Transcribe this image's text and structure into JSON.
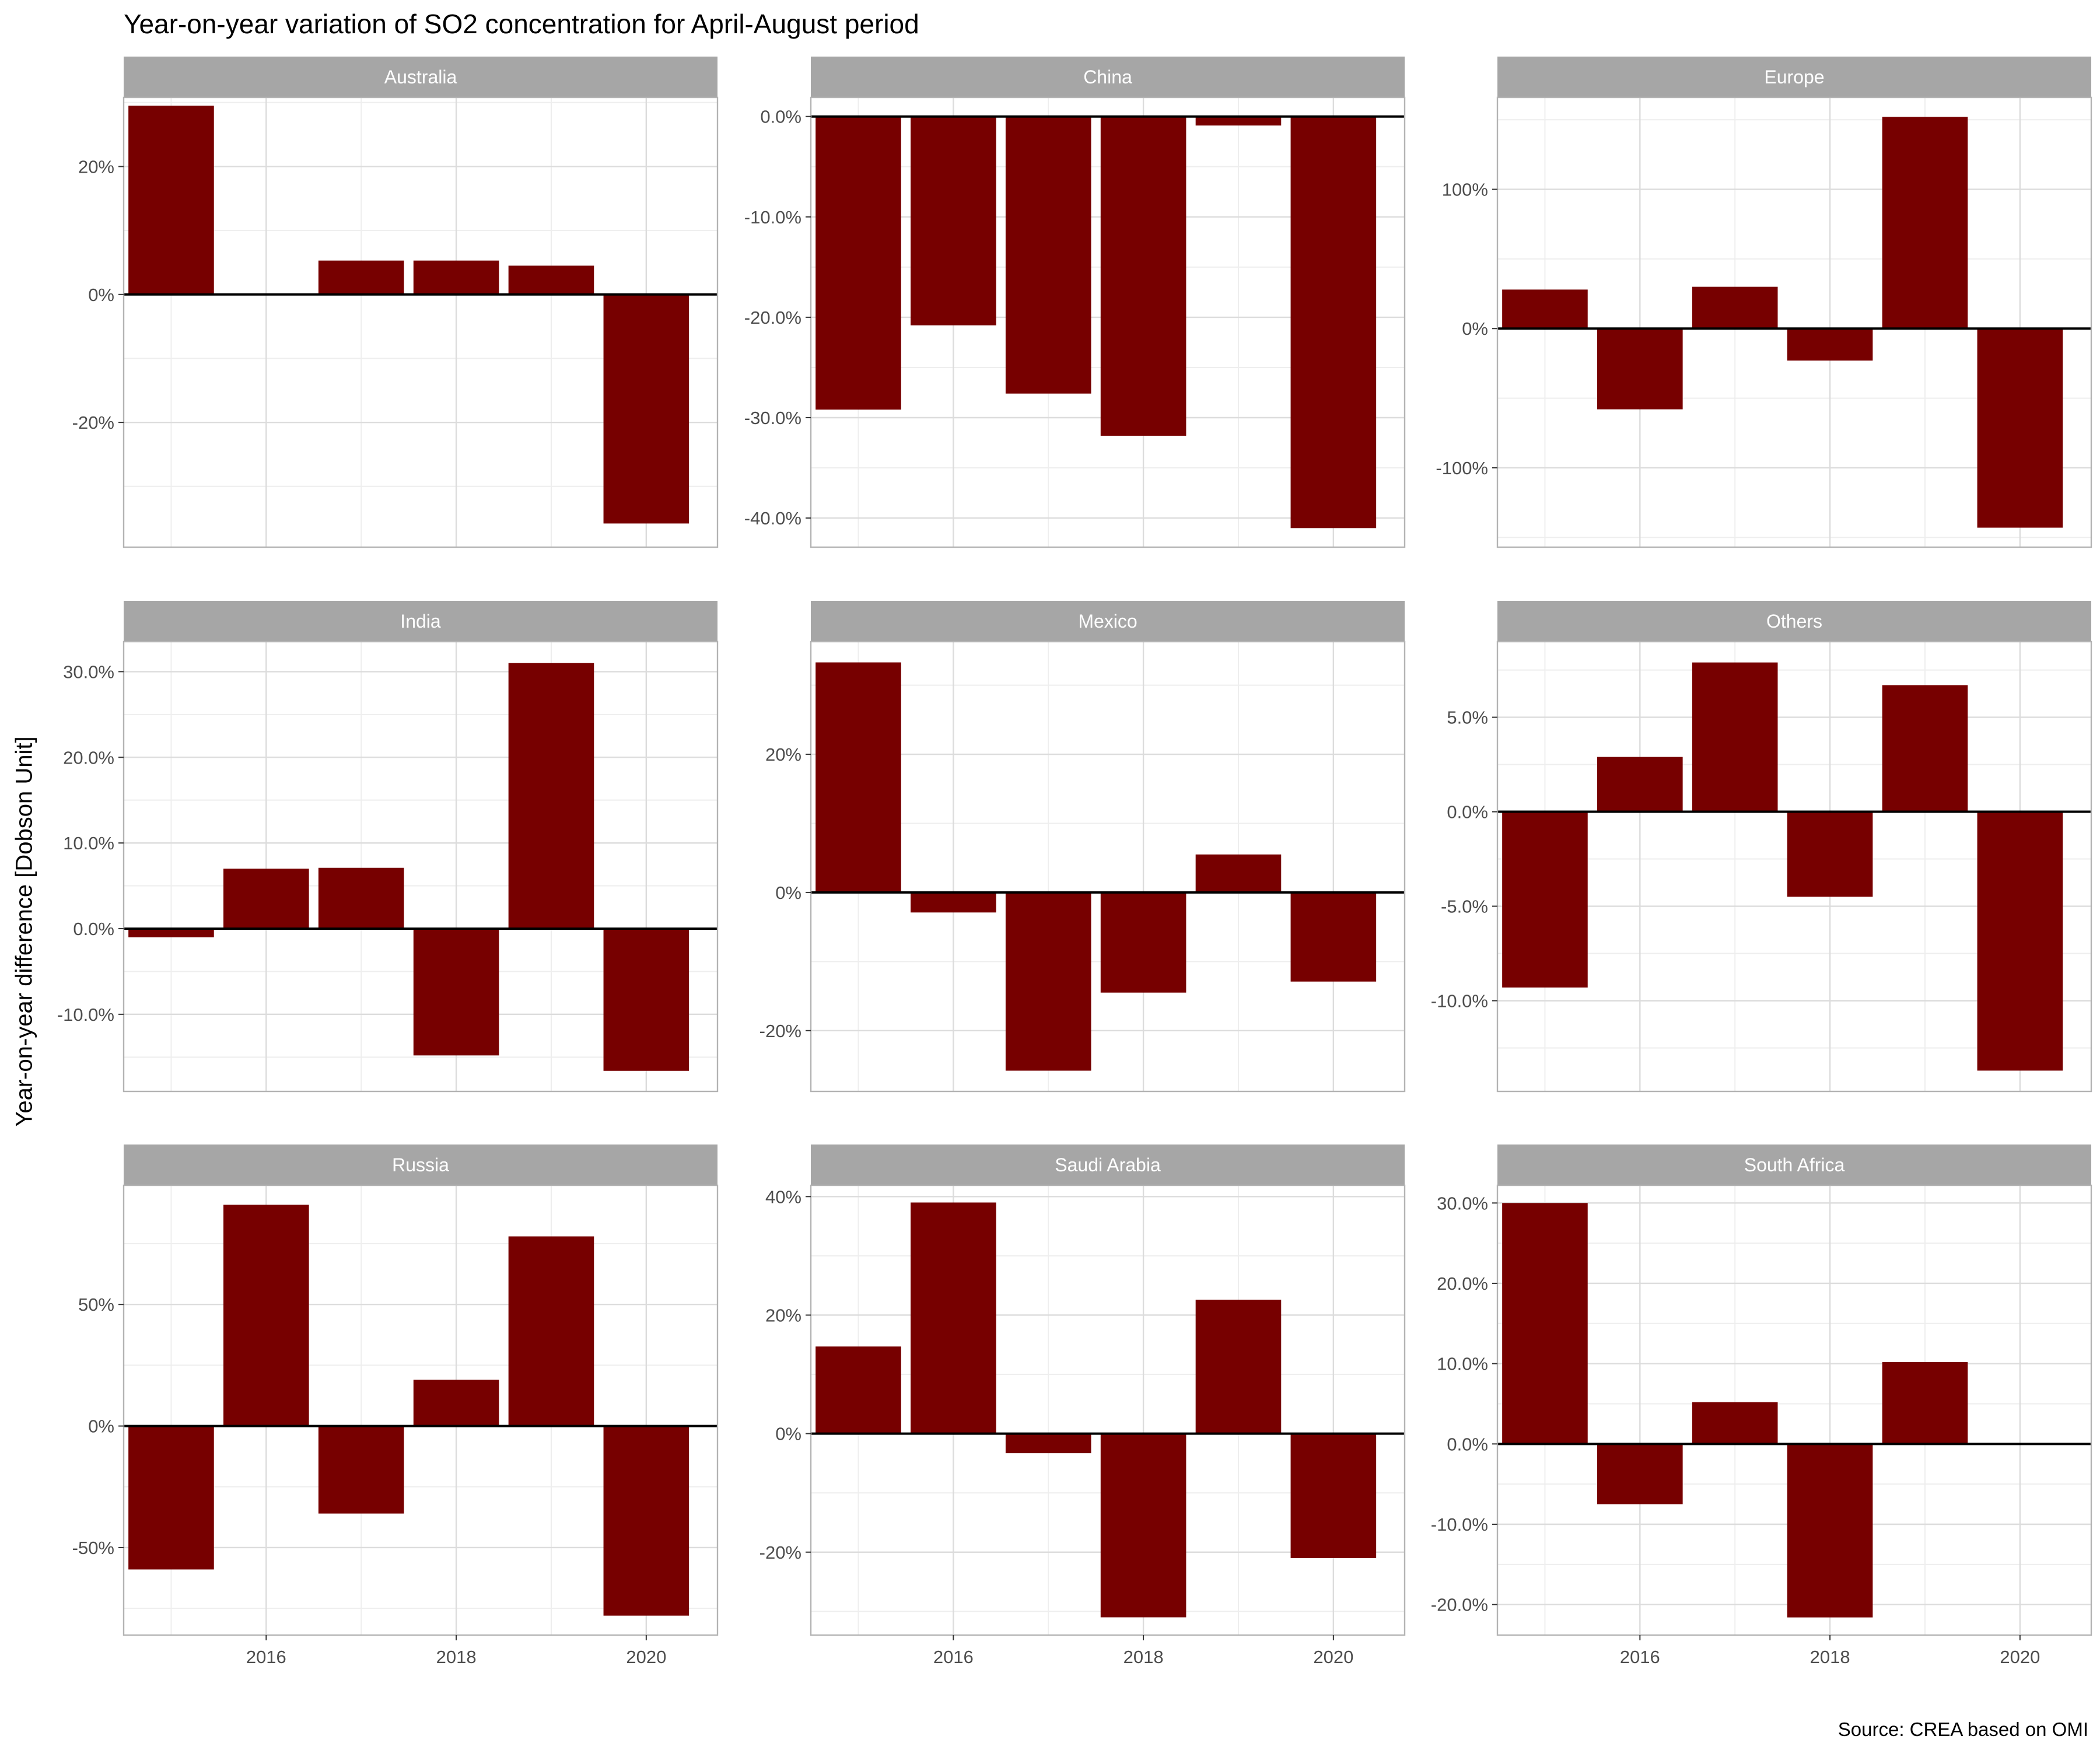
{
  "title": "Year-on-year variation of SO2 concentration for April-August period",
  "ylabel": "Year-on-year difference [Dobson Unit]",
  "caption": "Source: CREA based on OMI",
  "colors": {
    "bar": "#770000",
    "strip": "#a6a6a6",
    "grid_major": "#dcdcdc",
    "grid_minor": "#eeeeee",
    "panel_border": "#b3b3b3",
    "zero_line": "#000000"
  },
  "chart_data": {
    "type": "bar",
    "facets": 9,
    "layout": "3 columns x 3 rows",
    "x": [
      2015,
      2016,
      2017,
      2018,
      2019,
      2020
    ],
    "xlim": [
      2014.5,
      2020.75
    ],
    "x_ticks": [
      2016,
      2018,
      2020
    ],
    "x_tick_labels": [
      "2016",
      "2018",
      "2020"
    ],
    "panels": [
      {
        "name": "Australia",
        "values": [
          29.5,
          0.1,
          5.3,
          5.3,
          4.5,
          -35.8
        ],
        "ylim": [
          -39.5,
          30.8
        ],
        "major_ticks": [
          -20,
          0,
          20
        ],
        "minor_ticks": [
          -30,
          -10,
          10,
          30
        ],
        "tick_labels": [
          "-20%",
          "0%",
          "20%"
        ]
      },
      {
        "name": "China",
        "values": [
          -29.2,
          -20.8,
          -27.6,
          -31.8,
          -0.9,
          -41.0
        ],
        "ylim": [
          -42.9,
          1.9
        ],
        "major_ticks": [
          -40,
          -30,
          -20,
          -10,
          0
        ],
        "minor_ticks": [
          -35,
          -25,
          -15,
          -5
        ],
        "tick_labels": [
          "-40.0%",
          "-30.0%",
          "-20.0%",
          "-10.0%",
          "0.0%"
        ]
      },
      {
        "name": "Europe",
        "values": [
          28,
          -58,
          30,
          -23,
          152,
          -143
        ],
        "ylim": [
          -157,
          166
        ],
        "major_ticks": [
          -100,
          0,
          100
        ],
        "minor_ticks": [
          -150,
          -50,
          50,
          150
        ],
        "tick_labels": [
          "-100%",
          "0%",
          "100%"
        ]
      },
      {
        "name": "India",
        "values": [
          -1.0,
          7.0,
          7.1,
          -14.8,
          31.0,
          -16.6
        ],
        "ylim": [
          -19.0,
          33.5
        ],
        "major_ticks": [
          -10,
          0,
          10,
          20,
          30
        ],
        "minor_ticks": [
          -15,
          -5,
          5,
          15,
          25
        ],
        "tick_labels": [
          "-10.0%",
          "0.0%",
          "10.0%",
          "20.0%",
          "30.0%"
        ]
      },
      {
        "name": "Mexico",
        "values": [
          33.3,
          -2.9,
          -25.8,
          -14.5,
          5.5,
          -12.9
        ],
        "ylim": [
          -28.8,
          36.3
        ],
        "major_ticks": [
          -20,
          0,
          20
        ],
        "minor_ticks": [
          -30,
          -10,
          10,
          30
        ],
        "tick_labels": [
          "-20%",
          "0%",
          "20%"
        ]
      },
      {
        "name": "Others",
        "values": [
          -9.3,
          2.9,
          7.9,
          -4.5,
          6.7,
          -13.7
        ],
        "ylim": [
          -14.8,
          9.0
        ],
        "major_ticks": [
          -10,
          -5,
          0,
          5
        ],
        "minor_ticks": [
          -12.5,
          -7.5,
          -2.5,
          2.5,
          7.5
        ],
        "tick_labels": [
          "-10.0%",
          "-5.0%",
          "0.0%",
          "5.0%"
        ]
      },
      {
        "name": "Russia",
        "values": [
          -59,
          91,
          -36,
          19,
          78,
          -78
        ],
        "ylim": [
          -86,
          99
        ],
        "major_ticks": [
          -50,
          0,
          50
        ],
        "minor_ticks": [
          -75,
          -25,
          25,
          75
        ],
        "tick_labels": [
          "-50%",
          "0%",
          "50%"
        ]
      },
      {
        "name": "Saudi Arabia",
        "values": [
          14.7,
          39.0,
          -3.3,
          -31.0,
          22.6,
          -21.0
        ],
        "ylim": [
          -34.0,
          41.9
        ],
        "major_ticks": [
          -20,
          0,
          20,
          40
        ],
        "minor_ticks": [
          -30,
          -10,
          10,
          30
        ],
        "tick_labels": [
          "-20%",
          "0%",
          "20%",
          "40%"
        ]
      },
      {
        "name": "South Africa",
        "values": [
          30.0,
          -7.5,
          5.2,
          -21.6,
          10.2,
          0.0
        ],
        "ylim": [
          -23.8,
          32.2
        ],
        "major_ticks": [
          -20,
          -10,
          0,
          10,
          20,
          30
        ],
        "minor_ticks": [
          -15,
          -5,
          5,
          15,
          25
        ],
        "tick_labels": [
          "-20.0%",
          "-10.0%",
          "0.0%",
          "10.0%",
          "20.0%",
          "30.0%"
        ]
      }
    ]
  }
}
